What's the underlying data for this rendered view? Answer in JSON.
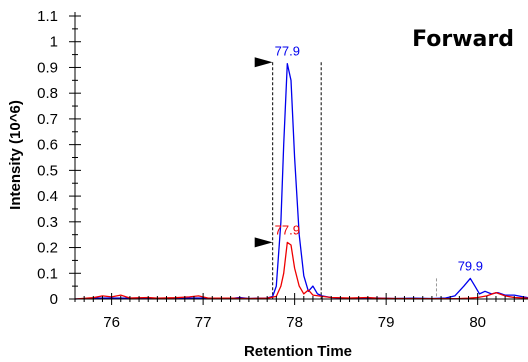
{
  "chart_data": {
    "type": "line",
    "title": "Forward",
    "xlabel": "Retention Time",
    "ylabel": "Intensity (10^6)",
    "xlim": [
      75.6,
      80.55
    ],
    "ylim": [
      0,
      1.1
    ],
    "x_ticks": [
      76,
      77,
      78,
      79,
      80
    ],
    "y_ticks": [
      "0",
      "0.1",
      "0.2",
      "0.3",
      "0.4",
      "0.5",
      "0.6",
      "0.7",
      "0.8",
      "0.9",
      "1",
      "1.1"
    ],
    "series": [
      {
        "color": "#0000ee",
        "points": [
          [
            75.6,
            0
          ],
          [
            75.8,
            0.003
          ],
          [
            76.0,
            0.004
          ],
          [
            76.15,
            0.003
          ],
          [
            76.3,
            0.004
          ],
          [
            76.5,
            0.003
          ],
          [
            76.7,
            0.002
          ],
          [
            76.9,
            0.004
          ],
          [
            77.1,
            0.003
          ],
          [
            77.3,
            0.002
          ],
          [
            77.4,
            0.006
          ],
          [
            77.5,
            0.002
          ],
          [
            77.6,
            0.003
          ],
          [
            77.7,
            0.004
          ],
          [
            77.76,
            0.01
          ],
          [
            77.8,
            0.05
          ],
          [
            77.85,
            0.3
          ],
          [
            77.88,
            0.6
          ],
          [
            77.92,
            0.915
          ],
          [
            77.96,
            0.85
          ],
          [
            78.0,
            0.55
          ],
          [
            78.05,
            0.25
          ],
          [
            78.1,
            0.09
          ],
          [
            78.15,
            0.03
          ],
          [
            78.2,
            0.05
          ],
          [
            78.25,
            0.02
          ],
          [
            78.3,
            0.012
          ],
          [
            78.4,
            0.006
          ],
          [
            78.5,
            0.004
          ],
          [
            78.7,
            0.003
          ],
          [
            78.9,
            0.004
          ],
          [
            79.1,
            0.002
          ],
          [
            79.3,
            0.003
          ],
          [
            79.5,
            0.002
          ],
          [
            79.65,
            0.004
          ],
          [
            79.75,
            0.012
          ],
          [
            79.85,
            0.05
          ],
          [
            79.92,
            0.08
          ],
          [
            79.97,
            0.05
          ],
          [
            80.02,
            0.02
          ],
          [
            80.08,
            0.03
          ],
          [
            80.15,
            0.02
          ],
          [
            80.22,
            0.025
          ],
          [
            80.3,
            0.015
          ],
          [
            80.4,
            0.015
          ],
          [
            80.5,
            0.008
          ],
          [
            80.55,
            0.005
          ]
        ]
      },
      {
        "color": "#ee0000",
        "points": [
          [
            75.6,
            0
          ],
          [
            75.8,
            0.005
          ],
          [
            75.9,
            0.012
          ],
          [
            76.0,
            0.008
          ],
          [
            76.1,
            0.015
          ],
          [
            76.2,
            0.004
          ],
          [
            76.4,
            0.006
          ],
          [
            76.5,
            0.003
          ],
          [
            76.7,
            0.005
          ],
          [
            76.85,
            0.008
          ],
          [
            76.95,
            0.012
          ],
          [
            77.05,
            0.004
          ],
          [
            77.3,
            0.003
          ],
          [
            77.5,
            0.002
          ],
          [
            77.7,
            0.003
          ],
          [
            77.8,
            0.01
          ],
          [
            77.85,
            0.05
          ],
          [
            77.88,
            0.1
          ],
          [
            77.92,
            0.22
          ],
          [
            77.96,
            0.21
          ],
          [
            78.0,
            0.12
          ],
          [
            78.05,
            0.05
          ],
          [
            78.1,
            0.02
          ],
          [
            78.15,
            0.035
          ],
          [
            78.2,
            0.015
          ],
          [
            78.3,
            0.01
          ],
          [
            78.4,
            0.006
          ],
          [
            78.6,
            0.004
          ],
          [
            78.8,
            0.006
          ],
          [
            78.9,
            0.003
          ],
          [
            79.1,
            0.002
          ],
          [
            79.4,
            0.001
          ],
          [
            79.8,
            0.002
          ],
          [
            79.9,
            0.003
          ],
          [
            80.0,
            0.006
          ],
          [
            80.1,
            0.012
          ],
          [
            80.2,
            0.025
          ],
          [
            80.3,
            0.012
          ],
          [
            80.4,
            0.006
          ],
          [
            80.55,
            0.003
          ]
        ]
      }
    ],
    "annotations": [
      {
        "text": "77.9",
        "x": 77.92,
        "y": 0.915,
        "color": "#0000ee"
      },
      {
        "text": "77.9",
        "x": 77.92,
        "y": 0.22,
        "color": "#ee0000"
      },
      {
        "text": "79.9",
        "x": 79.92,
        "y": 0.08,
        "color": "#0000ee"
      }
    ],
    "integration_bounds": {
      "start": 77.76,
      "end": 78.29,
      "color": "#000000",
      "left_top": 0.92,
      "right_top": 0.92,
      "markers": [
        {
          "x": 77.76,
          "y": 0.92
        },
        {
          "x": 77.76,
          "y": 0.22
        }
      ]
    },
    "aux_marker": {
      "x": 79.55,
      "top": 0.08,
      "color": "#999999"
    },
    "grid": false,
    "legend": "none"
  }
}
